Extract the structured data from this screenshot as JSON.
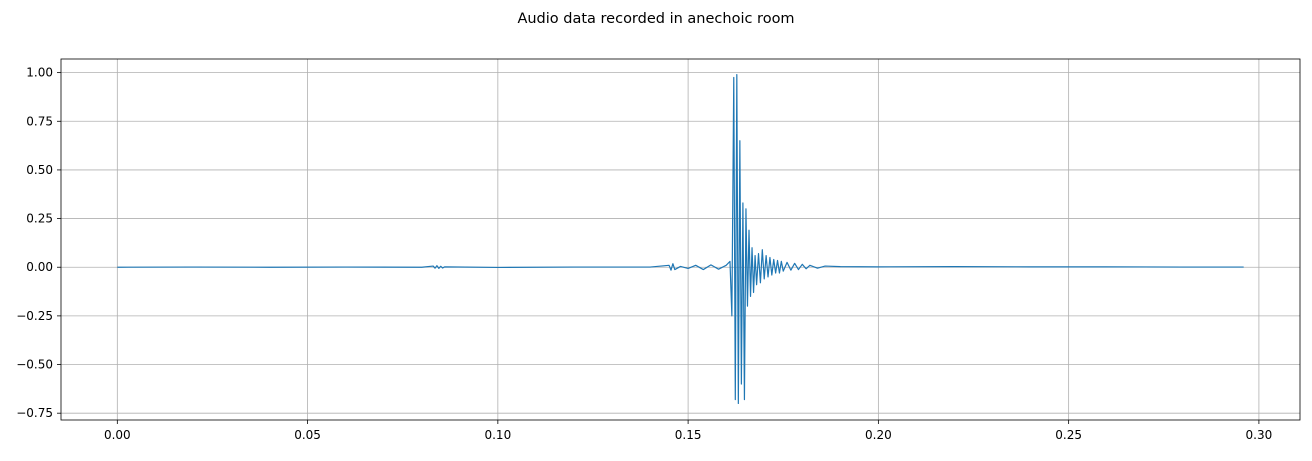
{
  "chart_data": {
    "type": "line",
    "title": "Audio data recorded in anechoic room",
    "xlabel": "",
    "ylabel": "",
    "xlim": [
      -0.0148,
      0.3108
    ],
    "ylim": [
      -0.785,
      1.07
    ],
    "xticks": [
      0.0,
      0.05,
      0.1,
      0.15,
      0.2,
      0.25,
      0.3
    ],
    "xtick_labels": [
      "0.00",
      "0.05",
      "0.10",
      "0.15",
      "0.20",
      "0.25",
      "0.30"
    ],
    "yticks": [
      -0.75,
      -0.5,
      -0.25,
      0.0,
      0.25,
      0.5,
      0.75,
      1.0
    ],
    "ytick_labels": [
      "−0.75",
      "−0.50",
      "−0.25",
      "0.00",
      "0.25",
      "0.50",
      "0.75",
      "1.00"
    ],
    "grid": true,
    "color": "#1f77b4",
    "series": [
      {
        "x": [
          0.0,
          0.02,
          0.04,
          0.06,
          0.08,
          0.083,
          0.0835,
          0.084,
          0.0845,
          0.085,
          0.0855,
          0.086,
          0.1,
          0.12,
          0.14,
          0.145,
          0.1455,
          0.146,
          0.1465,
          0.148,
          0.15,
          0.152,
          0.154,
          0.156,
          0.158,
          0.16,
          0.161,
          0.1615,
          0.162,
          0.1624,
          0.1628,
          0.1632,
          0.1636,
          0.164,
          0.1644,
          0.1648,
          0.1652,
          0.1656,
          0.166,
          0.1664,
          0.1668,
          0.1672,
          0.1676,
          0.168,
          0.1685,
          0.169,
          0.1695,
          0.17,
          0.1705,
          0.171,
          0.1715,
          0.172,
          0.1725,
          0.173,
          0.1735,
          0.174,
          0.1745,
          0.175,
          0.176,
          0.177,
          0.178,
          0.179,
          0.18,
          0.181,
          0.182,
          0.184,
          0.186,
          0.19,
          0.2,
          0.22,
          0.24,
          0.26,
          0.28,
          0.296
        ],
        "y": [
          0.0,
          0.001,
          0.0,
          0.001,
          0.0,
          0.006,
          -0.005,
          0.008,
          -0.006,
          0.005,
          -0.004,
          0.002,
          -0.001,
          0.001,
          0.001,
          0.01,
          -0.015,
          0.018,
          -0.012,
          0.004,
          -0.006,
          0.01,
          -0.012,
          0.012,
          -0.01,
          0.01,
          0.03,
          -0.25,
          0.975,
          -0.68,
          0.99,
          -0.7,
          0.65,
          -0.6,
          0.33,
          -0.68,
          0.3,
          -0.2,
          0.19,
          -0.15,
          0.1,
          -0.13,
          0.06,
          -0.09,
          0.07,
          -0.08,
          0.09,
          -0.06,
          0.06,
          -0.05,
          0.05,
          -0.04,
          0.04,
          -0.03,
          0.035,
          -0.03,
          0.03,
          -0.02,
          0.025,
          -0.015,
          0.02,
          -0.012,
          0.015,
          -0.008,
          0.01,
          -0.005,
          0.006,
          0.003,
          0.002,
          0.003,
          0.002,
          0.002,
          0.001,
          0.001
        ]
      }
    ]
  }
}
